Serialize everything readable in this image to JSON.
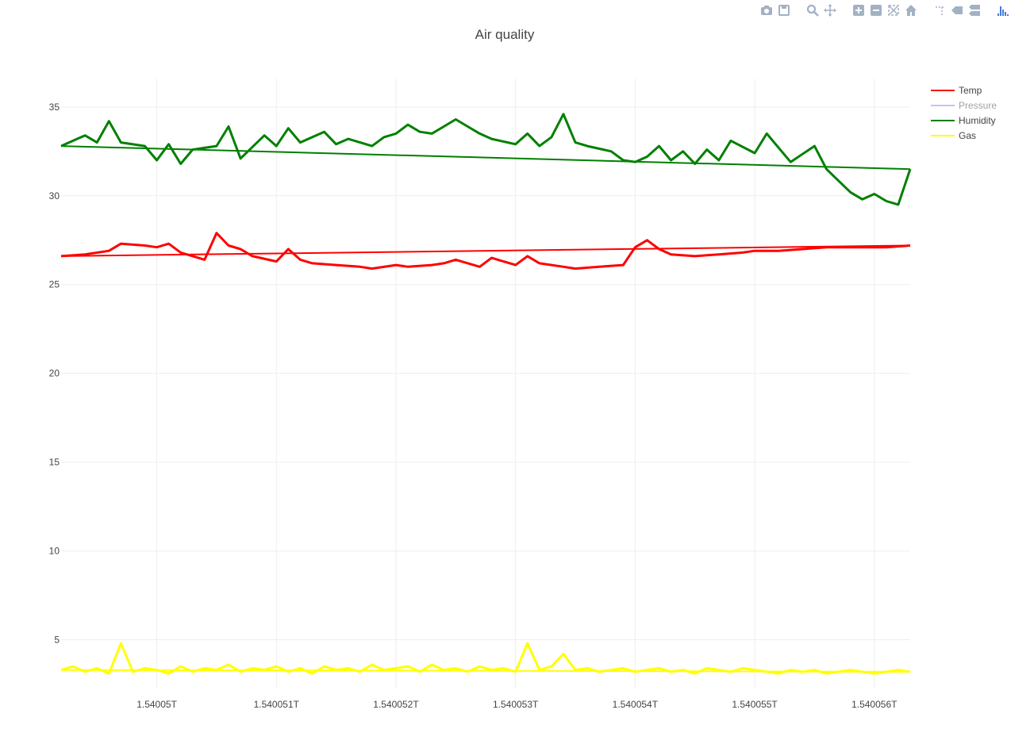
{
  "modebar": {
    "buttons": [
      {
        "name": "camera-icon",
        "group": 1
      },
      {
        "name": "save-icon",
        "group": 1
      },
      {
        "name": "zoom-icon",
        "group": 2
      },
      {
        "name": "pan-icon",
        "group": 2
      },
      {
        "name": "zoom-in-icon",
        "group": 3
      },
      {
        "name": "zoom-out-icon",
        "group": 3
      },
      {
        "name": "autoscale-icon",
        "group": 3
      },
      {
        "name": "home-icon",
        "group": 3
      },
      {
        "name": "spike-lines-icon",
        "group": 4
      },
      {
        "name": "hover-closest-icon",
        "group": 4
      },
      {
        "name": "hover-compare-icon",
        "group": 4
      },
      {
        "name": "plotly-logo-icon",
        "group": 5
      }
    ],
    "icon_color": "#a3b1c5",
    "logo_color": "#447adb"
  },
  "chart_data": {
    "type": "line",
    "title": "Air quality",
    "xlabel": "",
    "ylabel": "",
    "x_ticks": [
      "1.54005T",
      "1.540051T",
      "1.540052T",
      "1.540053T",
      "1.540054T",
      "1.540055T",
      "1.540056T"
    ],
    "x_tick_values": [
      1.54005,
      1.540051,
      1.540052,
      1.540053,
      1.540054,
      1.540055,
      1.540056
    ],
    "xlim": [
      1.5400492,
      1.5400563
    ],
    "ylim": [
      2.3,
      36.6
    ],
    "y_ticks": [
      5,
      10,
      15,
      20,
      25,
      30,
      35
    ],
    "grid": true,
    "legend_placement": "top-right",
    "series": [
      {
        "name": "Temp",
        "color": "#ff0000",
        "visible": true,
        "x": [
          1.5400492,
          1.5400494,
          1.5400496,
          1.5400497,
          1.5400499,
          1.54005,
          1.5400501,
          1.5400502,
          1.5400504,
          1.5400505,
          1.5400506,
          1.5400507,
          1.5400508,
          1.540051,
          1.5400511,
          1.5400512,
          1.5400513,
          1.5400515,
          1.5400517,
          1.5400518,
          1.540052,
          1.5400521,
          1.5400523,
          1.5400524,
          1.5400525,
          1.5400527,
          1.5400528,
          1.540053,
          1.5400531,
          1.5400532,
          1.5400534,
          1.5400535,
          1.5400537,
          1.5400539,
          1.540054,
          1.5400541,
          1.5400542,
          1.5400543,
          1.5400545,
          1.5400547,
          1.5400549,
          1.540055,
          1.5400552,
          1.5400554,
          1.5400556,
          1.5400558,
          1.5400561,
          1.5400563
        ],
        "values": [
          26.6,
          26.7,
          26.9,
          27.3,
          27.2,
          27.1,
          27.3,
          26.8,
          26.4,
          27.9,
          27.2,
          27.0,
          26.6,
          26.3,
          27.0,
          26.4,
          26.2,
          26.1,
          26.0,
          25.9,
          26.1,
          26.0,
          26.1,
          26.2,
          26.4,
          26.0,
          26.5,
          26.1,
          26.6,
          26.2,
          26.0,
          25.9,
          26.0,
          26.1,
          27.1,
          27.5,
          27.0,
          26.7,
          26.6,
          26.7,
          26.8,
          26.9,
          26.9,
          27.0,
          27.1,
          27.1,
          27.1,
          27.2
        ]
      },
      {
        "name": "Pressure",
        "color": "#8b8bf0",
        "visible": false,
        "x": [],
        "values": []
      },
      {
        "name": "Humidity",
        "color": "#008000",
        "visible": true,
        "x": [
          1.5400492,
          1.5400493,
          1.5400494,
          1.5400495,
          1.5400496,
          1.5400497,
          1.5400499,
          1.54005,
          1.5400501,
          1.5400502,
          1.5400503,
          1.5400505,
          1.5400506,
          1.5400507,
          1.5400509,
          1.540051,
          1.5400511,
          1.5400512,
          1.5400514,
          1.5400515,
          1.5400516,
          1.5400518,
          1.5400519,
          1.540052,
          1.5400521,
          1.5400522,
          1.5400523,
          1.5400524,
          1.5400525,
          1.5400526,
          1.5400527,
          1.5400528,
          1.540053,
          1.5400531,
          1.5400532,
          1.5400533,
          1.5400534,
          1.5400535,
          1.5400536,
          1.5400538,
          1.5400539,
          1.540054,
          1.5400541,
          1.5400542,
          1.5400543,
          1.5400544,
          1.5400545,
          1.5400546,
          1.5400547,
          1.5400548,
          1.540055,
          1.5400551,
          1.5400552,
          1.5400553,
          1.5400555,
          1.5400556,
          1.5400558,
          1.5400559,
          1.540056,
          1.5400561,
          1.5400562,
          1.5400563
        ],
        "values": [
          32.8,
          33.1,
          33.4,
          33.0,
          34.2,
          33.0,
          32.8,
          32.0,
          32.9,
          31.8,
          32.6,
          32.8,
          33.9,
          32.1,
          33.4,
          32.8,
          33.8,
          33.0,
          33.6,
          32.9,
          33.2,
          32.8,
          33.3,
          33.5,
          34.0,
          33.6,
          33.5,
          33.9,
          34.3,
          33.9,
          33.5,
          33.2,
          32.9,
          33.5,
          32.8,
          33.3,
          34.6,
          33.0,
          32.8,
          32.5,
          32.0,
          31.9,
          32.2,
          32.8,
          32.0,
          32.5,
          31.8,
          32.6,
          32.0,
          33.1,
          32.4,
          33.5,
          32.7,
          31.9,
          32.8,
          31.5,
          30.2,
          29.8,
          30.1,
          29.7,
          29.5,
          31.5
        ]
      },
      {
        "name": "Gas",
        "color": "#ffff00",
        "visible": true,
        "x": [
          1.5400492,
          1.5400493,
          1.5400494,
          1.5400495,
          1.5400496,
          1.5400497,
          1.5400498,
          1.5400499,
          1.54005,
          1.5400501,
          1.5400502,
          1.5400503,
          1.5400504,
          1.5400505,
          1.5400506,
          1.5400507,
          1.5400508,
          1.5400509,
          1.540051,
          1.5400511,
          1.5400512,
          1.5400513,
          1.5400514,
          1.5400515,
          1.5400516,
          1.5400517,
          1.5400518,
          1.5400519,
          1.540052,
          1.5400521,
          1.5400522,
          1.5400523,
          1.5400524,
          1.5400525,
          1.5400526,
          1.5400527,
          1.5400528,
          1.5400529,
          1.540053,
          1.5400531,
          1.5400532,
          1.5400533,
          1.5400534,
          1.5400535,
          1.5400536,
          1.5400537,
          1.5400538,
          1.5400539,
          1.540054,
          1.5400541,
          1.5400542,
          1.5400543,
          1.5400544,
          1.5400545,
          1.5400546,
          1.5400547,
          1.5400548,
          1.5400549,
          1.540055,
          1.5400551,
          1.5400552,
          1.5400553,
          1.5400554,
          1.5400555,
          1.5400556,
          1.5400557,
          1.5400558,
          1.5400559,
          1.540056,
          1.5400561,
          1.5400562,
          1.5400563
        ],
        "values": [
          3.3,
          3.5,
          3.2,
          3.4,
          3.1,
          4.8,
          3.2,
          3.4,
          3.3,
          3.1,
          3.5,
          3.2,
          3.4,
          3.3,
          3.6,
          3.2,
          3.4,
          3.3,
          3.5,
          3.2,
          3.4,
          3.1,
          3.5,
          3.3,
          3.4,
          3.2,
          3.6,
          3.3,
          3.4,
          3.5,
          3.2,
          3.6,
          3.3,
          3.4,
          3.2,
          3.5,
          3.3,
          3.4,
          3.2,
          4.8,
          3.3,
          3.5,
          4.2,
          3.3,
          3.4,
          3.2,
          3.3,
          3.4,
          3.2,
          3.3,
          3.4,
          3.2,
          3.3,
          3.1,
          3.4,
          3.3,
          3.2,
          3.4,
          3.3,
          3.2,
          3.1,
          3.3,
          3.2,
          3.3,
          3.1,
          3.2,
          3.3,
          3.2,
          3.1,
          3.2,
          3.3,
          3.2
        ]
      }
    ]
  }
}
